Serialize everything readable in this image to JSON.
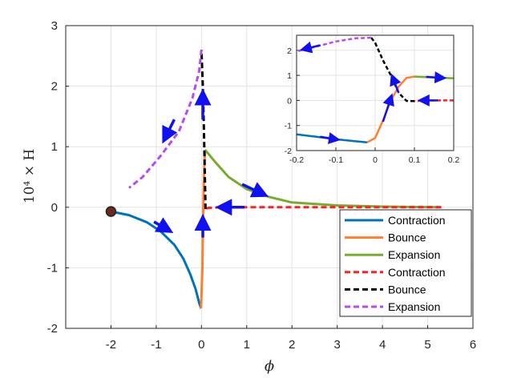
{
  "chart_data": [
    {
      "type": "line",
      "xlabel": "ϕ",
      "ylabel": "10⁴ × H",
      "xlim": [
        -3,
        6
      ],
      "ylim": [
        -2,
        3
      ],
      "xticks": [
        "-2",
        "-1",
        "0",
        "1",
        "2",
        "3",
        "4",
        "5",
        "6"
      ],
      "yticks": [
        "-2",
        "-1",
        "0",
        "1",
        "2",
        "3"
      ],
      "grid": true,
      "legend_position": "bottom-right",
      "colors": {
        "blue": "#0072BD",
        "orange": "#FF7F30",
        "green": "#77AC30",
        "red": "#FF2020",
        "black": "#000000",
        "purple": "#B54CF0",
        "arrow": "#1010F0"
      },
      "start_point": {
        "x": -2.0,
        "y": -0.07
      },
      "series": [
        {
          "name": "Contraction",
          "color": "#0072BD",
          "style": "solid",
          "points": [
            [
              -2.0,
              -0.07
            ],
            [
              -1.6,
              -0.13
            ],
            [
              -1.2,
              -0.25
            ],
            [
              -0.9,
              -0.4
            ],
            [
              -0.6,
              -0.62
            ],
            [
              -0.4,
              -0.85
            ],
            [
              -0.25,
              -1.1
            ],
            [
              -0.13,
              -1.35
            ],
            [
              -0.05,
              -1.58
            ],
            [
              -0.01,
              -1.67
            ]
          ]
        },
        {
          "name": "Bounce",
          "color": "#FF7F30",
          "style": "solid",
          "points": [
            [
              -0.01,
              -1.67
            ],
            [
              0.02,
              -1.0
            ],
            [
              0.04,
              0.0
            ],
            [
              0.06,
              0.6
            ],
            [
              0.08,
              0.95
            ]
          ]
        },
        {
          "name": "Expansion",
          "color": "#77AC30",
          "style": "solid",
          "points": [
            [
              0.08,
              0.95
            ],
            [
              0.3,
              0.75
            ],
            [
              0.6,
              0.5
            ],
            [
              1.0,
              0.3
            ],
            [
              1.5,
              0.17
            ],
            [
              2.0,
              0.08
            ],
            [
              3.0,
              0.03
            ],
            [
              4.0,
              0.01
            ],
            [
              5.3,
              0.0
            ]
          ]
        },
        {
          "name": "Contraction",
          "color": "#FF2020",
          "style": "dashed",
          "points": [
            [
              5.3,
              0.0
            ],
            [
              2.0,
              0.0
            ],
            [
              1.0,
              0.0
            ],
            [
              0.4,
              0.0
            ],
            [
              0.15,
              -0.01
            ],
            [
              0.09,
              -0.03
            ]
          ]
        },
        {
          "name": "Bounce",
          "color": "#000000",
          "style": "dashed",
          "points": [
            [
              0.09,
              -0.03
            ],
            [
              0.07,
              0.7
            ],
            [
              0.05,
              1.4
            ],
            [
              0.03,
              2.0
            ],
            [
              0.01,
              2.4
            ],
            [
              0.0,
              2.6
            ]
          ]
        },
        {
          "name": "Expansion",
          "color": "#B54CF0",
          "style": "dashed",
          "points": [
            [
              0.0,
              2.6
            ],
            [
              -0.05,
              2.25
            ],
            [
              -0.2,
              1.8
            ],
            [
              -0.5,
              1.25
            ],
            [
              -0.9,
              0.85
            ],
            [
              -1.3,
              0.5
            ],
            [
              -1.6,
              0.32
            ]
          ]
        }
      ],
      "arrows": [
        {
          "x1": -1.05,
          "y1": -0.24,
          "x2": -0.75,
          "y2": -0.37
        },
        {
          "x1": 0.03,
          "y1": -0.5,
          "x2": 0.03,
          "y2": -0.22
        },
        {
          "x1": 0.9,
          "y1": 0.38,
          "x2": 1.35,
          "y2": 0.22
        },
        {
          "x1": 0.95,
          "y1": 0.0,
          "x2": 0.45,
          "y2": 0.0
        },
        {
          "x1": 0.03,
          "y1": 1.45,
          "x2": 0.03,
          "y2": 1.85
        },
        {
          "x1": -0.6,
          "y1": 1.45,
          "x2": -0.8,
          "y2": 1.15
        }
      ]
    },
    {
      "type": "line",
      "inset": true,
      "xlim": [
        -0.2,
        0.2
      ],
      "ylim": [
        -2,
        2.6
      ],
      "xticks": [
        "-0.2",
        "-0.1",
        "0",
        "0.1",
        "0.2"
      ],
      "yticks": [
        "-2",
        "-1",
        "0",
        "1",
        "2"
      ],
      "grid": true,
      "series": [
        {
          "name": "Contraction",
          "color": "#0072BD",
          "style": "solid",
          "points": [
            [
              -0.2,
              -1.35
            ],
            [
              -0.15,
              -1.45
            ],
            [
              -0.1,
              -1.55
            ],
            [
              -0.05,
              -1.63
            ],
            [
              -0.02,
              -1.67
            ]
          ]
        },
        {
          "name": "Bounce",
          "color": "#FF7F30",
          "style": "solid",
          "points": [
            [
              -0.02,
              -1.67
            ],
            [
              0.0,
              -1.5
            ],
            [
              0.02,
              -0.8
            ],
            [
              0.04,
              0.0
            ],
            [
              0.06,
              0.55
            ],
            [
              0.08,
              0.9
            ],
            [
              0.1,
              0.95
            ]
          ]
        },
        {
          "name": "Expansion",
          "color": "#77AC30",
          "style": "solid",
          "points": [
            [
              0.1,
              0.95
            ],
            [
              0.15,
              0.92
            ],
            [
              0.2,
              0.88
            ]
          ]
        },
        {
          "name": "Contraction",
          "color": "#FF2020",
          "style": "dashed",
          "points": [
            [
              0.2,
              0.0
            ],
            [
              0.15,
              0.0
            ],
            [
              0.12,
              -0.01
            ],
            [
              0.1,
              -0.03
            ]
          ]
        },
        {
          "name": "Bounce",
          "color": "#000000",
          "style": "dashed",
          "points": [
            [
              0.1,
              -0.03
            ],
            [
              0.08,
              -0.02
            ],
            [
              0.06,
              0.3
            ],
            [
              0.04,
              1.0
            ],
            [
              0.02,
              1.6
            ],
            [
              0.0,
              2.3
            ],
            [
              -0.01,
              2.5
            ]
          ]
        },
        {
          "name": "Expansion",
          "color": "#B54CF0",
          "style": "dashed",
          "points": [
            [
              -0.01,
              2.5
            ],
            [
              -0.05,
              2.48
            ],
            [
              -0.1,
              2.35
            ],
            [
              -0.15,
              2.15
            ],
            [
              -0.2,
              1.95
            ]
          ]
        }
      ],
      "arrows": [
        {
          "x1": -0.14,
          "y1": -1.45,
          "x2": -0.1,
          "y2": -1.55
        },
        {
          "x1": 0.02,
          "y1": -0.85,
          "x2": 0.04,
          "y2": 0.1
        },
        {
          "x1": 0.13,
          "y1": 0.94,
          "x2": 0.17,
          "y2": 0.9
        },
        {
          "x1": 0.16,
          "y1": 0.0,
          "x2": 0.12,
          "y2": 0.0
        },
        {
          "x1": 0.06,
          "y1": 0.3,
          "x2": 0.045,
          "y2": 0.9
        },
        {
          "x1": -0.14,
          "y1": 2.2,
          "x2": -0.18,
          "y2": 2.05
        }
      ]
    }
  ]
}
